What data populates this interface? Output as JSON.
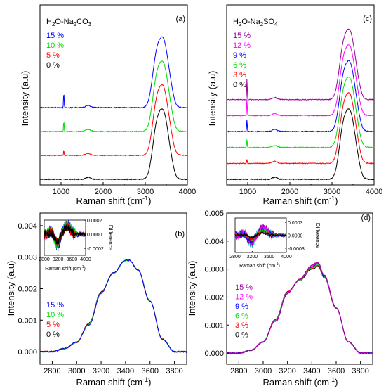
{
  "figure": {
    "panels": [
      {
        "id": "a",
        "panel_label": "(a)",
        "title_prefix": "H",
        "title_sub1": "2",
        "title_mid": "O-Na",
        "title_sub2": "2",
        "title_mid2": "CO",
        "title_sub3": "3",
        "ylabel": "Intensity (a.u)",
        "xlabel_main": "Raman shift (cm",
        "xlabel_sup": "-1",
        "xlabel_tail": ")",
        "xticks": [
          "1000",
          "2000",
          "3000",
          "4000"
        ],
        "legend": [
          {
            "label": "15 %",
            "color": "#0000ff"
          },
          {
            "label": "10 %",
            "color": "#00dd00"
          },
          {
            "label": "5 %",
            "color": "#ff0000"
          },
          {
            "label": "0 %",
            "color": "#000000"
          }
        ]
      },
      {
        "id": "b",
        "panel_label": "(b)",
        "ylabel": "Intensity (a.u)",
        "xlabel_main": "Raman shift (cm",
        "xlabel_sup": "-1",
        "xlabel_tail": ")",
        "xticks": [
          "2800",
          "3000",
          "3200",
          "3400",
          "3600",
          "3800"
        ],
        "yticks": [
          "0.000",
          "0.001",
          "0.002",
          "0.003",
          "0.004"
        ],
        "legend": [
          {
            "label": "15 %",
            "color": "#0000ff"
          },
          {
            "label": "10 %",
            "color": "#00dd00"
          },
          {
            "label": "5 %",
            "color": "#ff0000"
          },
          {
            "label": "0 %",
            "color": "#000000"
          }
        ],
        "inset": {
          "ylabel": "Difference",
          "xlabel_main": "Raman shift (cm",
          "xlabel_sup": "-1",
          "xlabel_tail": ")",
          "xticks": [
            "2800",
            "3200",
            "3600",
            "4000"
          ],
          "yticks": [
            "0.0002",
            "0.0000",
            "-0.0002"
          ]
        }
      },
      {
        "id": "c",
        "panel_label": "(c)",
        "title_prefix": "H",
        "title_sub1": "2",
        "title_mid": "O-Na",
        "title_sub2": "2",
        "title_mid2": "SO",
        "title_sub3": "4",
        "ylabel": "Intensity (a.u)",
        "xlabel_main": "Raman shift (cm",
        "xlabel_sup": "-1",
        "xlabel_tail": ")",
        "xticks": [
          "1000",
          "2000",
          "3000",
          "4000"
        ],
        "legend": [
          {
            "label": "15 %",
            "color": "#990099"
          },
          {
            "label": "12 %",
            "color": "#ff00ff"
          },
          {
            "label": "9 %",
            "color": "#0000ff"
          },
          {
            "label": "6 %",
            "color": "#00dd00"
          },
          {
            "label": "3 %",
            "color": "#ff0000"
          },
          {
            "label": "0 %",
            "color": "#000000"
          }
        ]
      },
      {
        "id": "d",
        "panel_label": "(d)",
        "ylabel": "Intensity (a.u)",
        "xlabel_main": "Raman shift (cm",
        "xlabel_sup": "-1",
        "xlabel_tail": ")",
        "xticks": [
          "2800",
          "3000",
          "3200",
          "3400",
          "3600",
          "3800"
        ],
        "yticks": [
          "0.000",
          "0.001",
          "0.002",
          "0.003",
          "0.004",
          "0.005"
        ],
        "legend": [
          {
            "label": "15 %",
            "color": "#990099"
          },
          {
            "label": "12 %",
            "color": "#ff00ff"
          },
          {
            "label": "9 %",
            "color": "#0000ff"
          },
          {
            "label": "6 %",
            "color": "#00dd00"
          },
          {
            "label": "3 %",
            "color": "#ff0000"
          },
          {
            "label": "0 %",
            "color": "#000000"
          }
        ],
        "inset": {
          "ylabel": "Difference",
          "xlabel_main": "Raman shift (cm",
          "xlabel_sup": "-1",
          "xlabel_tail": ")",
          "xticks": [
            "2800",
            "3200",
            "3600",
            "4000"
          ],
          "yticks": [
            "0.0003",
            "0.0000",
            "-0.0003"
          ]
        }
      }
    ]
  },
  "chart_data": [
    {
      "panel": "a",
      "type": "line",
      "xlim": [
        500,
        4000
      ],
      "series": [
        {
          "name": "0 %",
          "color": "#000000",
          "offset": 0.0,
          "sulfate_peak": 0,
          "peak_height": 1.0
        },
        {
          "name": "5 %",
          "color": "#ff0000",
          "offset": 0.1,
          "sulfate_peak": 0.05,
          "peak_height": 1.0
        },
        {
          "name": "10 %",
          "color": "#00dd00",
          "offset": 0.2,
          "sulfate_peak": 0.1,
          "peak_height": 1.0
        },
        {
          "name": "15 %",
          "color": "#0000ff",
          "offset": 0.3,
          "sulfate_peak": 0.15,
          "peak_height": 1.0
        }
      ],
      "features": {
        "narrow_peak_center": 1065,
        "bend_band_center": 1640,
        "oh_band_center": 3420
      }
    },
    {
      "panel": "b",
      "type": "line",
      "xlim": [
        2700,
        3900
      ],
      "ylim": [
        -0.0004,
        0.0044
      ],
      "series": [
        {
          "name": "0 %",
          "color": "#000000"
        },
        {
          "name": "5 %",
          "color": "#ff0000"
        },
        {
          "name": "10 %",
          "color": "#00dd00"
        },
        {
          "name": "15 %",
          "color": "#0000ff"
        }
      ],
      "x": [
        2700,
        2800,
        2900,
        3000,
        3100,
        3200,
        3300,
        3400,
        3430,
        3500,
        3600,
        3700,
        3800,
        3900
      ],
      "y": [
        0.0,
        0.0,
        0.0001,
        0.0003,
        0.0009,
        0.0019,
        0.0025,
        0.0029,
        0.0029,
        0.0026,
        0.0016,
        0.0004,
        0.0,
        0.0
      ],
      "inset": {
        "xlim": [
          2800,
          4000
        ],
        "ylim": [
          -0.0003,
          0.0002
        ]
      }
    },
    {
      "panel": "c",
      "type": "line",
      "xlim": [
        500,
        4000
      ],
      "series": [
        {
          "name": "0 %",
          "color": "#000000",
          "offset": 0.0,
          "sulfate_peak": 0
        },
        {
          "name": "3 %",
          "color": "#ff0000",
          "offset": 0.1,
          "sulfate_peak": 0.04
        },
        {
          "name": "6 %",
          "color": "#00dd00",
          "offset": 0.2,
          "sulfate_peak": 0.08
        },
        {
          "name": "9 %",
          "color": "#0000ff",
          "offset": 0.3,
          "sulfate_peak": 0.12
        },
        {
          "name": "12 %",
          "color": "#ff00ff",
          "offset": 0.4,
          "sulfate_peak": 0.16
        },
        {
          "name": "15 %",
          "color": "#990099",
          "offset": 0.5,
          "sulfate_peak": 0.2
        }
      ],
      "features": {
        "narrow_peak_center": 982,
        "bend_band_center": 1640,
        "oh_band_center": 3420
      }
    },
    {
      "panel": "d",
      "type": "line",
      "xlim": [
        2700,
        3900
      ],
      "ylim": [
        -0.0004,
        0.005
      ],
      "series": [
        {
          "name": "0 %",
          "color": "#000000"
        },
        {
          "name": "3 %",
          "color": "#ff0000"
        },
        {
          "name": "6 %",
          "color": "#00dd00"
        },
        {
          "name": "9 %",
          "color": "#0000ff"
        },
        {
          "name": "12 %",
          "color": "#ff00ff"
        },
        {
          "name": "15 %",
          "color": "#990099"
        }
      ],
      "x": [
        2700,
        2800,
        2900,
        3000,
        3100,
        3200,
        3300,
        3400,
        3450,
        3500,
        3600,
        3700,
        3800,
        3900
      ],
      "y": [
        0.0,
        0.0,
        0.0001,
        0.0004,
        0.0012,
        0.0022,
        0.0026,
        0.003,
        0.0031,
        0.0027,
        0.0016,
        0.0004,
        0.0,
        0.0
      ],
      "inset": {
        "xlim": [
          2800,
          4000
        ],
        "ylim": [
          -0.0004,
          0.0004
        ]
      }
    }
  ]
}
